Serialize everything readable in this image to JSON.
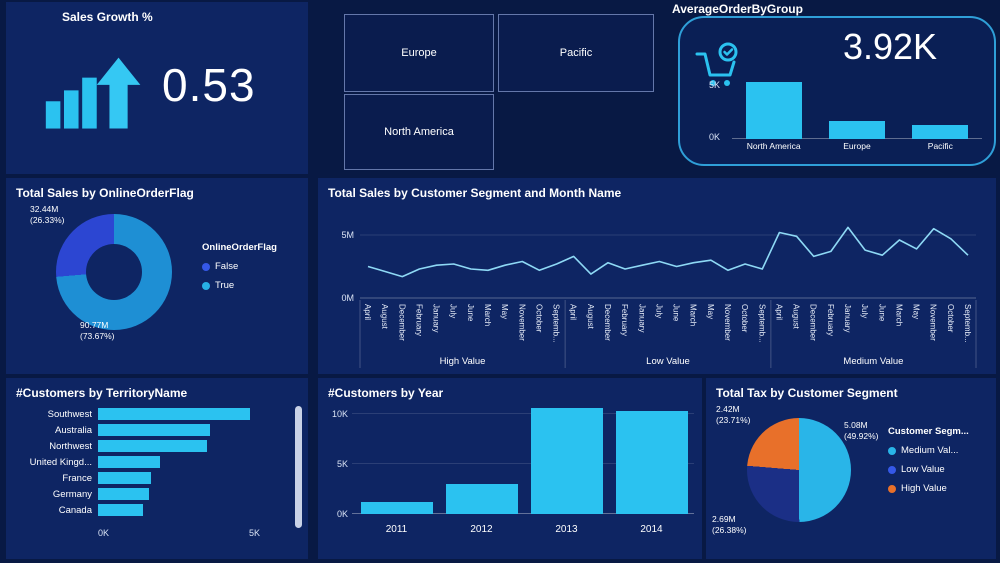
{
  "theme": {
    "page_bg": "#081944",
    "panel_bg": "#0e2563",
    "tile_bg": "#0a1c4e",
    "card_bg": "#0a1f55",
    "card_border": "#2f9fd8",
    "accent": "#2bc2f0",
    "line_color": "#8ed9f5",
    "text": "#ffffff",
    "orange": "#e8702a"
  },
  "sales_growth": {
    "title": "Sales Growth %",
    "value": "0.53"
  },
  "region_tiles": {
    "tiles": [
      "Europe",
      "Pacific",
      "North America"
    ]
  },
  "chart_data": [
    {
      "id": "avg_order_bars",
      "type": "bar",
      "title": "AverageOrderByGroup",
      "kpi": "3.92K",
      "categories": [
        "North America",
        "Europe",
        "Pacific"
      ],
      "values": [
        5.2,
        1.6,
        1.3
      ],
      "unit": "K",
      "y_ticks": [
        "0K",
        "5K"
      ],
      "ylim": [
        0,
        5.5
      ],
      "bar_color": "#2bc2f0"
    },
    {
      "id": "online_order_flag",
      "type": "donut",
      "title": "Total Sales by OnlineOrderFlag",
      "legend_title": "OnlineOrderFlag",
      "slices": [
        {
          "label": "True",
          "value": "90.77M",
          "pct": 73.67,
          "color": "#1e8fd4"
        },
        {
          "label": "False",
          "value": "32.44M",
          "pct": 26.33,
          "color": "#2c46d2"
        }
      ],
      "legend": [
        {
          "label": "False",
          "color": "#3558e8"
        },
        {
          "label": "True",
          "color": "#27b1e6"
        }
      ]
    },
    {
      "id": "sales_by_segment_month",
      "type": "line",
      "title": "Total Sales by Customer Segment and Month Name",
      "groups": [
        "High Value",
        "Low Value",
        "Medium Value"
      ],
      "months": [
        "April",
        "August",
        "December",
        "February",
        "January",
        "July",
        "June",
        "March",
        "May",
        "November",
        "October",
        "Septemb..."
      ],
      "series": [
        {
          "name": "Total Sales",
          "values_M": [
            2.5,
            2.1,
            1.7,
            2.3,
            2.6,
            2.7,
            2.3,
            2.2,
            2.6,
            2.9,
            2.2,
            2.7,
            3.3,
            1.9,
            2.8,
            2.3,
            2.6,
            2.9,
            2.5,
            2.8,
            3.0,
            2.2,
            2.7,
            2.3,
            5.2,
            4.9,
            3.3,
            3.7,
            5.6,
            3.8,
            3.4,
            4.6,
            3.9,
            5.5,
            4.7,
            3.4
          ]
        }
      ],
      "y_ticks": [
        "0M",
        "5M"
      ],
      "ylim": [
        0,
        6
      ],
      "line_color": "#8ed9f5"
    },
    {
      "id": "customers_by_territory",
      "type": "bar",
      "orientation": "horizontal",
      "title": "#Customers by TerritoryName",
      "categories": [
        "Southwest",
        "Australia",
        "Northwest",
        "United Kingd...",
        "France",
        "Germany",
        "Canada"
      ],
      "values": [
        4.9,
        3.6,
        3.5,
        2.0,
        1.7,
        1.65,
        1.45
      ],
      "unit": "K",
      "x_ticks": [
        "0K",
        "5K"
      ],
      "xlim": [
        0,
        5.5
      ],
      "bar_color": "#2bc2f0",
      "has_scrollbar": true
    },
    {
      "id": "customers_by_year",
      "type": "bar",
      "title": "#Customers by Year",
      "categories": [
        "2011",
        "2012",
        "2013",
        "2014"
      ],
      "values": [
        1.2,
        3.0,
        10.6,
        10.3
      ],
      "unit": "K",
      "y_ticks": [
        "0K",
        "5K",
        "10K"
      ],
      "ylim": [
        0,
        11
      ],
      "bar_color": "#2bc2f0"
    },
    {
      "id": "tax_by_segment",
      "type": "pie",
      "title": "Total Tax by Customer Segment",
      "legend_title": "Customer Segm...",
      "slices": [
        {
          "label": "Medium Val...",
          "value": "5.08M",
          "pct": 49.92,
          "color": "#29b5e8",
          "legend_color": "#29b5e8"
        },
        {
          "label": "Low Value",
          "value": "2.69M",
          "pct": 26.38,
          "color": "#1b2f86",
          "legend_color": "#3558e8"
        },
        {
          "label": "High Value",
          "value": "2.42M",
          "pct": 23.71,
          "color": "#e8702a",
          "legend_color": "#e8702a"
        }
      ]
    }
  ]
}
